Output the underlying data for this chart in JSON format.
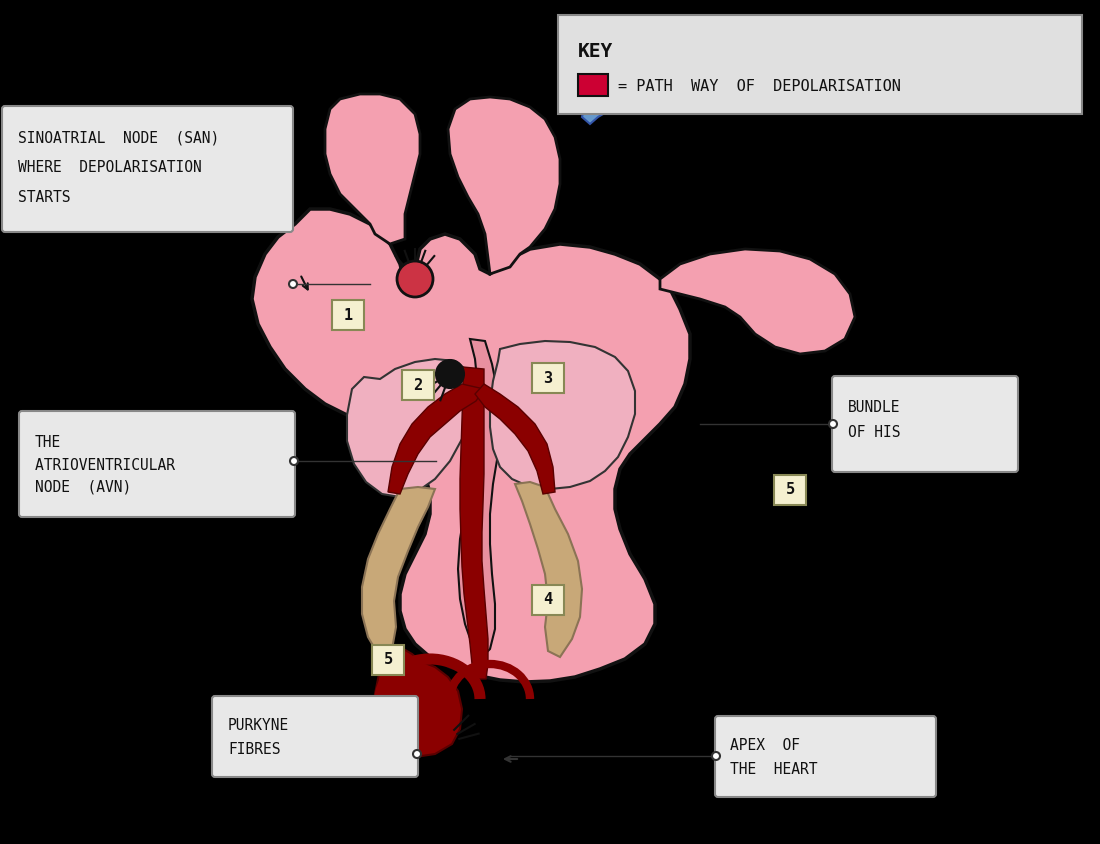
{
  "background_color": "#000000",
  "heart_fill": "#F4A0B0",
  "heart_stroke": "#1a1a1a",
  "dark_red_path": "#8B0000",
  "bright_red": "#CC0033",
  "tan_color": "#C8A878",
  "blue_accent": "#6699CC",
  "label_bg": "#E8E8E8",
  "label_bg2": "#F5F0D0",
  "key_bg": "#E0E0E0",
  "key_text": "KEY",
  "key_line": "= PATH  WAY  OF  DEPOLARISATION",
  "san_label": "SINOATRIAL  NODE  (SAN)\nWHERE  DEPOLARISATION \nSTARTS",
  "avn_label": "THE\nATRIOVENTRICULAR \nNODE  (AVN)",
  "bundle_label": "BUNDLE\nOF HIS",
  "purkyne_label": "PURKYNE\nFIBRES",
  "apex_label": "APEX  OF\nTHE  HEART",
  "num1": "1",
  "num2": "2",
  "num3": "3",
  "num4": "4",
  "num5a": "5",
  "num5b": "5"
}
